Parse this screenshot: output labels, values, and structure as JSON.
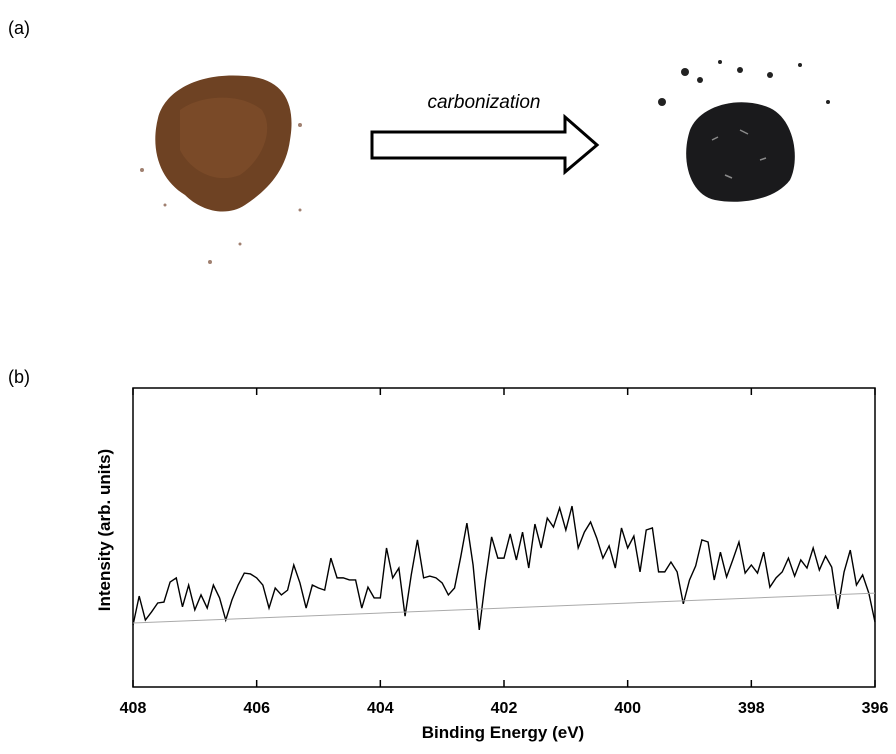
{
  "figure": {
    "panel_a_label": "(a)",
    "arrow_label": "carbonization",
    "panel_b_label": "(b)"
  },
  "chart_data": {
    "type": "line",
    "xlabel": "Binding Energy (eV)",
    "ylabel": "Intensity (arb. units)",
    "x": [
      408,
      407.9,
      407.8,
      407.7,
      407.6,
      407.5,
      407.4,
      407.3,
      407.2,
      407.1,
      407,
      406.9,
      406.8,
      406.7,
      406.6,
      406.5,
      406.4,
      406.3,
      406.2,
      406.1,
      406,
      405.9,
      405.8,
      405.7,
      405.6,
      405.5,
      405.4,
      405.3,
      405.2,
      405.1,
      405,
      404.9,
      404.8,
      404.7,
      404.6,
      404.5,
      404.4,
      404.3,
      404.2,
      404.1,
      404,
      403.9,
      403.8,
      403.7,
      403.6,
      403.5,
      403.4,
      403.3,
      403.2,
      403.1,
      403,
      402.9,
      402.8,
      402.7,
      402.6,
      402.5,
      402.4,
      402.3,
      402.2,
      402.1,
      402,
      401.9,
      401.8,
      401.7,
      401.6,
      401.5,
      401.4,
      401.3,
      401.2,
      401.1,
      401,
      400.9,
      400.8,
      400.7,
      400.6,
      400.5,
      400.4,
      400.3,
      400.2,
      400.1,
      400,
      399.9,
      399.8,
      399.7,
      399.6,
      399.5,
      399.4,
      399.3,
      399.2,
      399.1,
      399,
      398.9,
      398.8,
      398.7,
      398.6,
      398.5,
      398.4,
      398.3,
      398.2,
      398.1,
      398,
      397.9,
      397.8,
      397.7,
      397.6,
      397.5,
      397.4,
      397.3,
      397.2,
      397.1,
      397,
      396.9,
      396.8,
      396.7,
      396.6,
      396.5,
      396.4,
      396.3,
      396.2,
      396.1,
      396
    ],
    "series": [
      {
        "color": "#000000",
        "values": [
          20.7,
          30.4,
          22.4,
          25.1,
          28.1,
          28.4,
          35.1,
          36.5,
          26.8,
          34.1,
          25.8,
          30.8,
          26.4,
          34.1,
          29.8,
          22.4,
          29.1,
          34.1,
          38.1,
          37.8,
          36.5,
          34.1,
          26.4,
          33.1,
          30.8,
          32.4,
          40.8,
          34.8,
          26.4,
          34.1,
          33.1,
          32.4,
          43.1,
          36.5,
          36.5,
          35.8,
          35.8,
          26.4,
          33.4,
          29.8,
          29.8,
          46.5,
          36.5,
          39.8,
          23.7,
          37.5,
          49.2,
          36.5,
          37.1,
          36.5,
          34.8,
          30.8,
          33.1,
          43.5,
          54.8,
          40.8,
          19.1,
          35.8,
          50.2,
          43.1,
          43.1,
          51.2,
          42.5,
          51.8,
          39.8,
          54.5,
          46.5,
          56.5,
          53.5,
          59.9,
          52.5,
          60.5,
          46.5,
          51.8,
          55.2,
          49.8,
          43.1,
          47.2,
          39.8,
          53.2,
          46.5,
          50.5,
          38.5,
          52.5,
          53.2,
          38.5,
          38.5,
          41.8,
          38.5,
          27.8,
          35.8,
          40.5,
          49.2,
          48.5,
          35.8,
          45.1,
          36.8,
          42.5,
          48.5,
          38.1,
          40.8,
          38.1,
          45.1,
          33.4,
          36.5,
          38.5,
          43.1,
          37.1,
          42.5,
          39.8,
          46.5,
          39.1,
          43.8,
          40.1,
          26.1,
          38.5,
          45.8,
          34.1,
          37.5,
          31.4,
          21.7
        ]
      },
      {
        "color": "#aaaaaa",
        "x": [
          408,
          396
        ],
        "values": [
          21.4,
          31.4
        ]
      }
    ],
    "xlim": [
      408,
      396
    ],
    "xticks": [
      408,
      406,
      404,
      402,
      400,
      398,
      396
    ],
    "ylim": [
      0,
      100
    ]
  }
}
